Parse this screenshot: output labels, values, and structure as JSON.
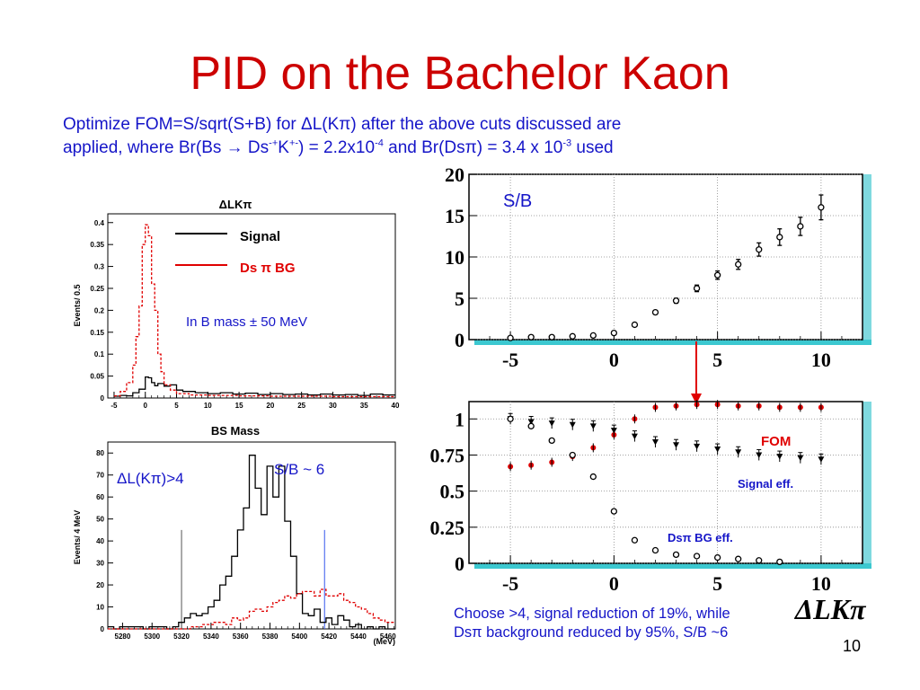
{
  "slide": {
    "title": "PID on the Bachelor Kaon",
    "subtitle_line1": "Optimize FOM=S/sqrt(S+B) for ΔL(Kπ) after the above cuts discussed are",
    "subtitle_line2_parts": [
      "applied, where Br(Bs → Ds",
      "-+",
      "K",
      "+-",
      ") = 2.2x10",
      "-4",
      " and Br(Dsπ) = 3.4 x 10",
      "-3",
      " used"
    ],
    "conclusion_line1": "Choose >4, signal reduction of 19%, while",
    "conclusion_line2": "Dsπ background reduced by 95%, S/B ~6",
    "page_number": "10"
  },
  "colors": {
    "title": "#cc0000",
    "text": "#1515c8",
    "signal": "#000000",
    "background": "#e00000",
    "frame": "#3cc8d0"
  },
  "chart_data": [
    {
      "id": "dlk-hist",
      "type": "histogram",
      "title": "ΔLKπ",
      "ylabel": "Events/ 0.5",
      "xlim": [
        -6,
        40
      ],
      "ylim": [
        0,
        0.42
      ],
      "x_ticks": [
        "-5",
        "0",
        "5",
        "10",
        "15",
        "20",
        "25",
        "30",
        "35",
        "40"
      ],
      "y_ticks": [
        "0",
        "0.05",
        "0.1",
        "0.15",
        "0.2",
        "0.25",
        "0.3",
        "0.35",
        "0.4"
      ],
      "legend": [
        {
          "name": "Signal",
          "color": "#000000"
        },
        {
          "name": "Ds π BG",
          "color": "#e00000"
        }
      ],
      "annotation": "In B mass ± 50 MeV",
      "series": [
        {
          "name": "Signal",
          "style": "solid",
          "bins": [
            [
              -5,
              0.004
            ],
            [
              -4,
              0.006
            ],
            [
              -3,
              0.005
            ],
            [
              -2,
              0.012
            ],
            [
              -1,
              0.02
            ],
            [
              0,
              0.048
            ],
            [
              0.5,
              0.046
            ],
            [
              1,
              0.035
            ],
            [
              1.5,
              0.028
            ],
            [
              2,
              0.033
            ],
            [
              3,
              0.027
            ],
            [
              4,
              0.03
            ],
            [
              5,
              0.018
            ],
            [
              6,
              0.015
            ],
            [
              8,
              0.012
            ],
            [
              10,
              0.01
            ],
            [
              12,
              0.012
            ],
            [
              14,
              0.009
            ],
            [
              16,
              0.011
            ],
            [
              18,
              0.008
            ],
            [
              20,
              0.01
            ],
            [
              22,
              0.008
            ],
            [
              24,
              0.009
            ],
            [
              26,
              0.007
            ],
            [
              28,
              0.009
            ],
            [
              30,
              0.007
            ],
            [
              32,
              0.008
            ],
            [
              34,
              0.006
            ],
            [
              36,
              0.009
            ],
            [
              38,
              0.007
            ],
            [
              40,
              0.007
            ]
          ]
        },
        {
          "name": "Ds π BG",
          "style": "dashed",
          "bins": [
            [
              -5,
              0.005
            ],
            [
              -4,
              0.015
            ],
            [
              -3,
              0.035
            ],
            [
              -2,
              0.075
            ],
            [
              -1.5,
              0.14
            ],
            [
              -1,
              0.21
            ],
            [
              -0.5,
              0.35
            ],
            [
              0,
              0.395
            ],
            [
              0.5,
              0.37
            ],
            [
              1,
              0.26
            ],
            [
              1.5,
              0.2
            ],
            [
              2,
              0.1
            ],
            [
              2.5,
              0.06
            ],
            [
              3,
              0.03
            ],
            [
              4,
              0.018
            ],
            [
              5,
              0.01
            ],
            [
              7,
              0.007
            ],
            [
              10,
              0.006
            ],
            [
              15,
              0.005
            ],
            [
              20,
              0.004
            ],
            [
              25,
              0.004
            ],
            [
              30,
              0.003
            ],
            [
              35,
              0.003
            ],
            [
              40,
              0.003
            ]
          ]
        }
      ]
    },
    {
      "id": "bs-mass",
      "type": "histogram",
      "title": "BS Mass",
      "ylabel": "Events/ 4 MeV",
      "xlabel": "(MeV)",
      "xlim": [
        5270,
        5465
      ],
      "ylim": [
        0,
        85
      ],
      "x_ticks": [
        "5280",
        "5300",
        "5320",
        "5340",
        "5360",
        "5380",
        "5400",
        "5420",
        "5440",
        "5460"
      ],
      "y_ticks": [
        "0",
        "10",
        "20",
        "30",
        "40",
        "50",
        "60",
        "70",
        "80"
      ],
      "annotations": [
        "ΔL(Kπ)>4",
        "S/B ~ 6"
      ],
      "cut_lines": [
        5320,
        5417
      ],
      "series": [
        {
          "name": "Signal",
          "style": "solid",
          "bins": [
            [
              5270,
              1
            ],
            [
              5274,
              0
            ],
            [
              5278,
              1
            ],
            [
              5282,
              1
            ],
            [
              5286,
              1
            ],
            [
              5290,
              1
            ],
            [
              5294,
              0
            ],
            [
              5298,
              1
            ],
            [
              5302,
              1
            ],
            [
              5306,
              1
            ],
            [
              5310,
              0
            ],
            [
              5314,
              1
            ],
            [
              5318,
              3
            ],
            [
              5322,
              5
            ],
            [
              5326,
              7
            ],
            [
              5330,
              6
            ],
            [
              5334,
              7
            ],
            [
              5338,
              10
            ],
            [
              5342,
              13
            ],
            [
              5346,
              20
            ],
            [
              5350,
              24
            ],
            [
              5354,
              33
            ],
            [
              5358,
              45
            ],
            [
              5362,
              55
            ],
            [
              5366,
              79
            ],
            [
              5370,
              64
            ],
            [
              5374,
              52
            ],
            [
              5378,
              74
            ],
            [
              5382,
              60
            ],
            [
              5386,
              74
            ],
            [
              5390,
              49
            ],
            [
              5394,
              33
            ],
            [
              5398,
              16
            ],
            [
              5402,
              7
            ],
            [
              5406,
              6
            ],
            [
              5410,
              9
            ],
            [
              5414,
              3
            ],
            [
              5418,
              5
            ],
            [
              5422,
              2
            ],
            [
              5426,
              6
            ],
            [
              5430,
              4
            ],
            [
              5434,
              1
            ],
            [
              5438,
              2
            ],
            [
              5442,
              0
            ],
            [
              5446,
              1
            ],
            [
              5450,
              0
            ],
            [
              5454,
              1
            ],
            [
              5458,
              0
            ],
            [
              5462,
              0
            ]
          ]
        },
        {
          "name": "Ds π BG",
          "style": "dashed",
          "bins": [
            [
              5270,
              0
            ],
            [
              5290,
              0
            ],
            [
              5310,
              0
            ],
            [
              5326,
              1
            ],
            [
              5334,
              2
            ],
            [
              5342,
              3
            ],
            [
              5350,
              2
            ],
            [
              5354,
              5
            ],
            [
              5358,
              4
            ],
            [
              5362,
              5
            ],
            [
              5366,
              8
            ],
            [
              5370,
              9
            ],
            [
              5374,
              8
            ],
            [
              5378,
              10
            ],
            [
              5382,
              12
            ],
            [
              5386,
              13
            ],
            [
              5390,
              15
            ],
            [
              5394,
              14
            ],
            [
              5398,
              16
            ],
            [
              5402,
              17
            ],
            [
              5406,
              17
            ],
            [
              5410,
              15
            ],
            [
              5414,
              18
            ],
            [
              5418,
              15
            ],
            [
              5422,
              15
            ],
            [
              5426,
              16
            ],
            [
              5430,
              13
            ],
            [
              5434,
              12
            ],
            [
              5438,
              10
            ],
            [
              5442,
              9
            ],
            [
              5446,
              7
            ],
            [
              5450,
              5
            ],
            [
              5454,
              4
            ],
            [
              5458,
              3
            ],
            [
              5462,
              3
            ]
          ]
        }
      ]
    },
    {
      "id": "sb-vs-cut",
      "type": "scatter",
      "label": "S/B",
      "xlim": [
        -7,
        12
      ],
      "ylim": [
        0,
        20
      ],
      "x_ticks": [
        "-5",
        "0",
        "5",
        "10"
      ],
      "y_ticks": [
        "0",
        "5",
        "10",
        "15",
        "20"
      ],
      "series": [
        {
          "name": "S/B",
          "x": [
            -5,
            -4,
            -3,
            -2,
            -1,
            0,
            1,
            2,
            3,
            4,
            5,
            6,
            7,
            8,
            9,
            10
          ],
          "y": [
            0.2,
            0.3,
            0.3,
            0.4,
            0.5,
            0.8,
            1.8,
            3.3,
            4.7,
            6.2,
            7.8,
            9.1,
            10.9,
            12.4,
            13.7,
            16.0
          ],
          "err": [
            0.1,
            0.1,
            0.1,
            0.1,
            0.1,
            0.1,
            0.2,
            0.2,
            0.3,
            0.4,
            0.5,
            0.6,
            0.8,
            1.0,
            1.1,
            1.5
          ]
        }
      ]
    },
    {
      "id": "fom-vs-cut",
      "type": "scatter",
      "xlabel": "ΔLKπ",
      "xlim": [
        -7,
        12
      ],
      "ylim": [
        0,
        1.12
      ],
      "x_ticks": [
        "-5",
        "0",
        "5",
        "10"
      ],
      "y_ticks": [
        "0",
        "0.25",
        "0.5",
        "0.75",
        "1"
      ],
      "labels": [
        "FOM",
        "Signal eff.",
        "Dsπ BG eff."
      ],
      "series": [
        {
          "name": "FOM",
          "color": "#e00000",
          "x": [
            -5,
            -4,
            -3,
            -2,
            -1,
            0,
            1,
            2,
            3,
            4,
            5,
            6,
            7,
            8,
            9,
            10
          ],
          "y": [
            0.67,
            0.68,
            0.7,
            0.74,
            0.8,
            0.89,
            1.0,
            1.08,
            1.09,
            1.1,
            1.1,
            1.09,
            1.09,
            1.08,
            1.08,
            1.08
          ]
        },
        {
          "name": "Signal eff.",
          "color": "#000000",
          "x": [
            -5,
            -4,
            -3,
            -2,
            -1,
            0,
            1,
            2,
            3,
            4,
            5,
            6,
            7,
            8,
            9,
            10
          ],
          "y": [
            1.0,
            0.98,
            0.97,
            0.96,
            0.95,
            0.92,
            0.88,
            0.84,
            0.82,
            0.81,
            0.79,
            0.77,
            0.75,
            0.74,
            0.73,
            0.72
          ]
        },
        {
          "name": "Dsπ BG eff.",
          "color": "#000000",
          "x": [
            -5,
            -4,
            -3,
            -2,
            -1,
            0,
            1,
            2,
            3,
            4,
            5,
            6,
            7,
            8
          ],
          "y": [
            1.0,
            0.95,
            0.85,
            0.75,
            0.6,
            0.36,
            0.16,
            0.09,
            0.06,
            0.05,
            0.04,
            0.03,
            0.02,
            0.01
          ]
        }
      ]
    }
  ]
}
